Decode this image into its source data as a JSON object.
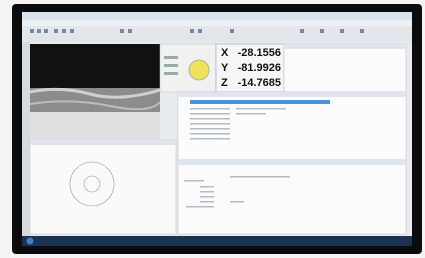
{
  "dro": {
    "rows": [
      {
        "axis": "X",
        "value": "-28.1556"
      },
      {
        "axis": "Y",
        "value": "-81.9926"
      },
      {
        "axis": "Z",
        "value": "-14.7685"
      }
    ]
  }
}
